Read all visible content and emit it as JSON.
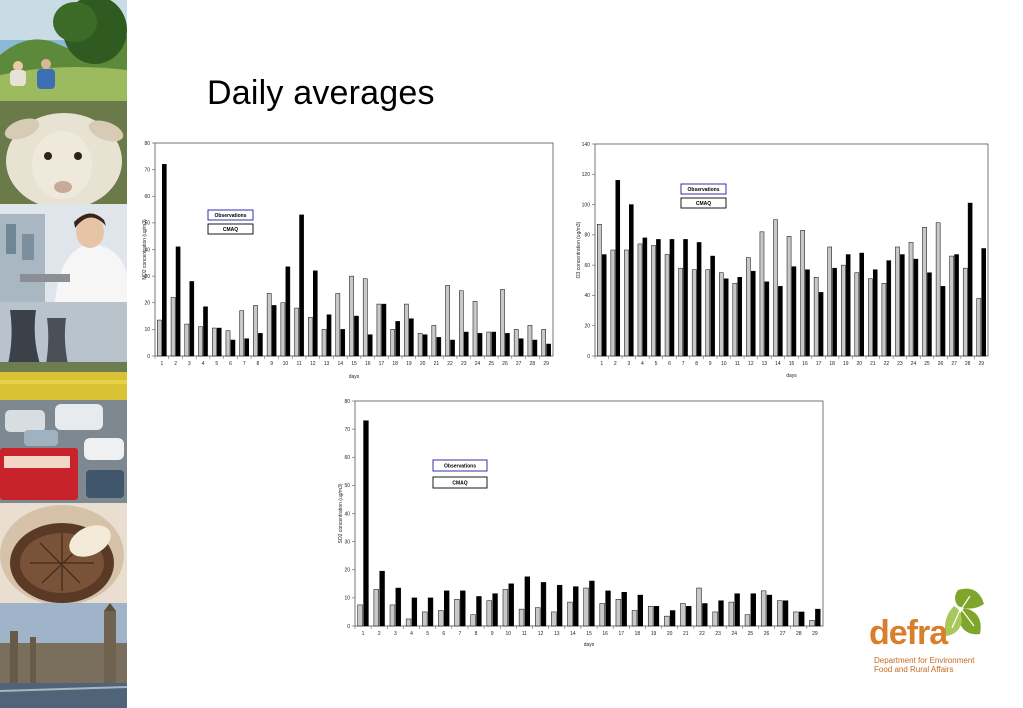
{
  "slide": {
    "title": "Daily averages"
  },
  "logo": {
    "wordmark": "defra",
    "line1": "Department for Environment",
    "line2": "Food and Rural Affairs",
    "colors": {
      "orange": "#d97e2a",
      "green": "#7fa62b"
    }
  },
  "photos": [
    "hillside-picnic",
    "sheep",
    "laboratory-scientist",
    "power-station-cooling-towers",
    "road-traffic",
    "mushroom",
    "london-skyline"
  ],
  "chart_data": [
    {
      "type": "bar",
      "xlabel": "days",
      "ylabel": "NO2 concentration (ug/m3)",
      "ylim": [
        0,
        80
      ],
      "yticks": [
        0,
        10,
        20,
        30,
        40,
        50,
        60,
        70,
        80
      ],
      "categories": [
        "1",
        "2",
        "3",
        "4",
        "5",
        "6",
        "7",
        "8",
        "9",
        "10",
        "11",
        "12",
        "13",
        "14",
        "15",
        "16",
        "17",
        "18",
        "19",
        "20",
        "21",
        "22",
        "23",
        "24",
        "25",
        "26",
        "27",
        "28",
        "29"
      ],
      "legend": [
        "Observations",
        "CMAQ"
      ],
      "legend_colors": [
        "#1a1aa8",
        "#000000"
      ],
      "series": [
        {
          "name": "Observations",
          "color": "#c8c8c8",
          "values": [
            13.5,
            22,
            12,
            11,
            10.5,
            9.5,
            17,
            19,
            23.5,
            20,
            18,
            14.5,
            10,
            23.5,
            30,
            29,
            19.5,
            10,
            19.5,
            8.5,
            11.5,
            26.5,
            24.5,
            20.5,
            9,
            25,
            10,
            11.5,
            10
          ]
        },
        {
          "name": "CMAQ",
          "color": "#000000",
          "values": [
            72,
            41,
            28,
            18.5,
            10.5,
            6,
            6.5,
            8.5,
            19,
            33.5,
            53,
            32,
            15.5,
            10,
            15,
            8,
            19.5,
            13,
            14,
            8,
            7,
            6,
            9,
            8.5,
            9,
            8.5,
            6.5,
            6,
            4.5
          ]
        }
      ]
    },
    {
      "type": "bar",
      "xlabel": "days",
      "ylabel": "O3 concentration (ug/m3)",
      "ylim": [
        0,
        140
      ],
      "yticks": [
        0,
        20,
        40,
        60,
        80,
        100,
        120,
        140
      ],
      "categories": [
        "1",
        "2",
        "3",
        "4",
        "5",
        "6",
        "7",
        "8",
        "9",
        "10",
        "11",
        "12",
        "13",
        "14",
        "15",
        "16",
        "17",
        "18",
        "19",
        "20",
        "21",
        "22",
        "23",
        "24",
        "25",
        "26",
        "27",
        "28",
        "29"
      ],
      "legend": [
        "Observations",
        "CMAQ"
      ],
      "legend_colors": [
        "#1a1aa8",
        "#000000"
      ],
      "series": [
        {
          "name": "Observations",
          "color": "#c8c8c8",
          "values": [
            87,
            70,
            70,
            74,
            73,
            67,
            58,
            57,
            57,
            55,
            48,
            65,
            82,
            90,
            79,
            83,
            52,
            72,
            60,
            55,
            51,
            48,
            72,
            75,
            85,
            88,
            66,
            58,
            38
          ]
        },
        {
          "name": "CMAQ",
          "color": "#000000",
          "values": [
            67,
            116,
            100,
            78,
            77,
            77,
            77,
            75,
            66,
            51,
            52,
            56,
            49,
            46,
            59,
            57,
            42,
            58,
            67,
            68,
            57,
            63,
            67,
            64,
            55,
            46,
            67,
            101,
            71
          ]
        }
      ]
    },
    {
      "type": "bar",
      "xlabel": "days",
      "ylabel": "SO2 concentration (ug/m3)",
      "ylim": [
        0,
        80
      ],
      "yticks": [
        0,
        10,
        20,
        30,
        40,
        50,
        60,
        70,
        80
      ],
      "categories": [
        "1",
        "2",
        "3",
        "4",
        "5",
        "6",
        "7",
        "8",
        "9",
        "10",
        "11",
        "12",
        "13",
        "14",
        "15",
        "16",
        "17",
        "18",
        "19",
        "20",
        "21",
        "22",
        "23",
        "24",
        "25",
        "26",
        "27",
        "28",
        "29"
      ],
      "legend": [
        "Observations",
        "CMAQ"
      ],
      "legend_colors": [
        "#1a1aa8",
        "#000000"
      ],
      "series": [
        {
          "name": "Observations",
          "color": "#c8c8c8",
          "values": [
            7.5,
            13,
            7.5,
            2.5,
            5,
            5.5,
            9.5,
            4,
            9,
            13,
            6,
            6.5,
            5,
            8.5,
            13.5,
            8,
            9.5,
            5.5,
            7,
            3.5,
            8,
            13.5,
            5,
            8.5,
            4,
            12.5,
            9,
            5,
            2
          ]
        },
        {
          "name": "CMAQ",
          "color": "#000000",
          "values": [
            73,
            19.5,
            13.5,
            10,
            10,
            12.5,
            12.5,
            10.5,
            11.5,
            15,
            17.5,
            15.5,
            14.5,
            14,
            16,
            12.5,
            12,
            11,
            7,
            5.5,
            7,
            8,
            9,
            11.5,
            11.5,
            11,
            9,
            5,
            6
          ]
        }
      ]
    }
  ]
}
